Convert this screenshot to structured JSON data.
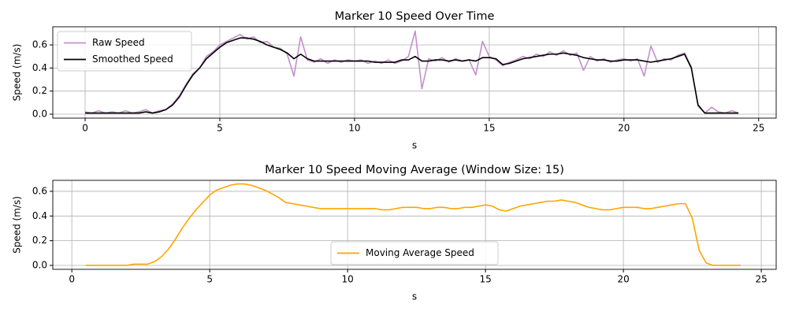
{
  "chart_data": [
    {
      "type": "line",
      "title": "Marker 10 Speed Over Time",
      "x_label": "s",
      "y_label": "Speed (m/s)",
      "x": [
        0,
        0.25,
        0.5,
        0.75,
        1,
        1.25,
        1.5,
        1.75,
        2,
        2.25,
        2.5,
        2.75,
        3,
        3.25,
        3.5,
        3.75,
        4,
        4.25,
        4.5,
        4.75,
        5,
        5.25,
        5.5,
        5.75,
        6,
        6.25,
        6.5,
        6.75,
        7,
        7.25,
        7.5,
        7.75,
        8,
        8.25,
        8.5,
        8.75,
        9,
        9.25,
        9.5,
        9.75,
        10,
        10.25,
        10.5,
        10.75,
        11,
        11.25,
        11.5,
        11.75,
        12,
        12.25,
        12.5,
        12.75,
        13,
        13.25,
        13.5,
        13.75,
        14,
        14.25,
        14.5,
        14.75,
        15,
        15.25,
        15.5,
        15.75,
        16,
        16.25,
        16.5,
        16.75,
        17,
        17.25,
        17.5,
        17.75,
        18,
        18.25,
        18.5,
        18.75,
        19,
        19.25,
        19.5,
        19.75,
        20,
        20.25,
        20.5,
        20.75,
        21,
        21.25,
        21.5,
        21.75,
        22,
        22.25,
        22.5,
        22.75,
        23,
        23.25,
        23.5,
        23.75,
        24,
        24.25
      ],
      "series": [
        {
          "name": "Raw Speed",
          "color": "#c48fcc",
          "values": [
            0.02,
            0.01,
            0.03,
            0.01,
            0.02,
            0.01,
            0.03,
            0.01,
            0.02,
            0.04,
            0.01,
            0.03,
            0.04,
            0.09,
            0.16,
            0.26,
            0.35,
            0.4,
            0.5,
            0.54,
            0.6,
            0.63,
            0.66,
            0.69,
            0.65,
            0.67,
            0.62,
            0.63,
            0.58,
            0.57,
            0.52,
            0.33,
            0.67,
            0.47,
            0.45,
            0.48,
            0.44,
            0.47,
            0.45,
            0.47,
            0.46,
            0.47,
            0.44,
            0.46,
            0.44,
            0.47,
            0.44,
            0.46,
            0.5,
            0.72,
            0.22,
            0.48,
            0.46,
            0.49,
            0.45,
            0.48,
            0.46,
            0.47,
            0.34,
            0.63,
            0.5,
            0.47,
            0.42,
            0.45,
            0.47,
            0.5,
            0.48,
            0.52,
            0.5,
            0.54,
            0.51,
            0.55,
            0.51,
            0.53,
            0.38,
            0.5,
            0.46,
            0.48,
            0.45,
            0.47,
            0.48,
            0.46,
            0.48,
            0.33,
            0.59,
            0.45,
            0.48,
            0.47,
            0.51,
            0.53,
            0.41,
            0.07,
            0.01,
            0.06,
            0.02,
            0.01,
            0.03,
            0.01
          ]
        },
        {
          "name": "Smoothed Speed",
          "color": "#000000",
          "values": [
            0.01,
            0.01,
            0.01,
            0.01,
            0.01,
            0.01,
            0.01,
            0.01,
            0.01,
            0.02,
            0.01,
            0.02,
            0.04,
            0.08,
            0.15,
            0.25,
            0.34,
            0.4,
            0.48,
            0.53,
            0.58,
            0.62,
            0.64,
            0.66,
            0.66,
            0.65,
            0.63,
            0.6,
            0.58,
            0.56,
            0.53,
            0.48,
            0.52,
            0.48,
            0.46,
            0.46,
            0.46,
            0.46,
            0.46,
            0.46,
            0.46,
            0.46,
            0.46,
            0.45,
            0.45,
            0.45,
            0.45,
            0.47,
            0.47,
            0.5,
            0.46,
            0.46,
            0.47,
            0.47,
            0.46,
            0.47,
            0.46,
            0.47,
            0.46,
            0.49,
            0.49,
            0.48,
            0.43,
            0.44,
            0.46,
            0.48,
            0.49,
            0.5,
            0.51,
            0.52,
            0.52,
            0.53,
            0.52,
            0.51,
            0.49,
            0.48,
            0.47,
            0.47,
            0.46,
            0.46,
            0.47,
            0.47,
            0.47,
            0.46,
            0.45,
            0.46,
            0.47,
            0.48,
            0.5,
            0.52,
            0.4,
            0.08,
            0.01,
            0.01,
            0.01,
            0.01,
            0.01,
            0.01
          ]
        }
      ],
      "xlim": [
        -1.2,
        25.65
      ],
      "ylim": [
        -0.034,
        0.757
      ],
      "xticks": [
        0,
        5,
        10,
        15,
        20,
        25
      ],
      "yticks": [
        {
          "value": 0,
          "label": "0.0"
        },
        {
          "value": 0.2,
          "label": "0.2"
        },
        {
          "value": 0.4,
          "label": "0.4"
        },
        {
          "value": 0.6,
          "label": "0.6"
        }
      ],
      "grid": true,
      "legend": "upper left"
    },
    {
      "type": "line",
      "title": "Marker 10 Speed Moving Average (Window Size: 15)",
      "x_label": "s",
      "y_label": "Speed (m/s)",
      "x": [
        0.5,
        0.75,
        1,
        1.25,
        1.5,
        1.75,
        2,
        2.25,
        2.5,
        2.75,
        3,
        3.25,
        3.5,
        3.75,
        4,
        4.25,
        4.5,
        4.75,
        5,
        5.25,
        5.5,
        5.75,
        6,
        6.25,
        6.5,
        6.75,
        7,
        7.25,
        7.5,
        7.75,
        8,
        8.25,
        8.5,
        8.75,
        9,
        9.25,
        9.5,
        9.75,
        10,
        10.25,
        10.5,
        10.75,
        11,
        11.25,
        11.5,
        11.75,
        12,
        12.25,
        12.5,
        12.75,
        13,
        13.25,
        13.5,
        13.75,
        14,
        14.25,
        14.5,
        14.75,
        15,
        15.25,
        15.5,
        15.75,
        16,
        16.25,
        16.5,
        16.75,
        17,
        17.25,
        17.5,
        17.75,
        18,
        18.25,
        18.5,
        18.75,
        19,
        19.25,
        19.5,
        19.75,
        20,
        20.25,
        20.5,
        20.75,
        21,
        21.25,
        21.5,
        21.75,
        22,
        22.25,
        22.5,
        22.75,
        23,
        23.25,
        23.5,
        23.75,
        24,
        24.25
      ],
      "series": [
        {
          "name": "Moving Average Speed",
          "color": "#ffa500",
          "values": [
            0.0,
            0.0,
            0.0,
            0.0,
            0.0,
            0.0,
            0.0,
            0.01,
            0.01,
            0.01,
            0.03,
            0.07,
            0.13,
            0.21,
            0.3,
            0.38,
            0.45,
            0.51,
            0.57,
            0.61,
            0.63,
            0.65,
            0.66,
            0.66,
            0.65,
            0.63,
            0.61,
            0.58,
            0.55,
            0.51,
            0.5,
            0.49,
            0.48,
            0.47,
            0.46,
            0.46,
            0.46,
            0.46,
            0.46,
            0.46,
            0.46,
            0.46,
            0.46,
            0.45,
            0.45,
            0.46,
            0.47,
            0.47,
            0.47,
            0.46,
            0.46,
            0.47,
            0.47,
            0.46,
            0.46,
            0.47,
            0.47,
            0.48,
            0.49,
            0.48,
            0.45,
            0.44,
            0.46,
            0.48,
            0.49,
            0.5,
            0.51,
            0.52,
            0.52,
            0.53,
            0.52,
            0.51,
            0.49,
            0.47,
            0.46,
            0.45,
            0.45,
            0.46,
            0.47,
            0.47,
            0.47,
            0.46,
            0.46,
            0.47,
            0.48,
            0.49,
            0.5,
            0.5,
            0.38,
            0.12,
            0.02,
            0.0,
            0.0,
            0.0,
            0.0,
            0.0
          ]
        }
      ],
      "xlim": [
        -0.69,
        25.54
      ],
      "ylim": [
        -0.032,
        0.689
      ],
      "xticks": [
        0,
        5,
        10,
        15,
        20,
        25
      ],
      "yticks": [
        {
          "value": 0,
          "label": "0.0"
        },
        {
          "value": 0.2,
          "label": "0.2"
        },
        {
          "value": 0.4,
          "label": "0.4"
        },
        {
          "value": 0.6,
          "label": "0.6"
        }
      ],
      "grid": true,
      "legend": "lower center"
    }
  ]
}
